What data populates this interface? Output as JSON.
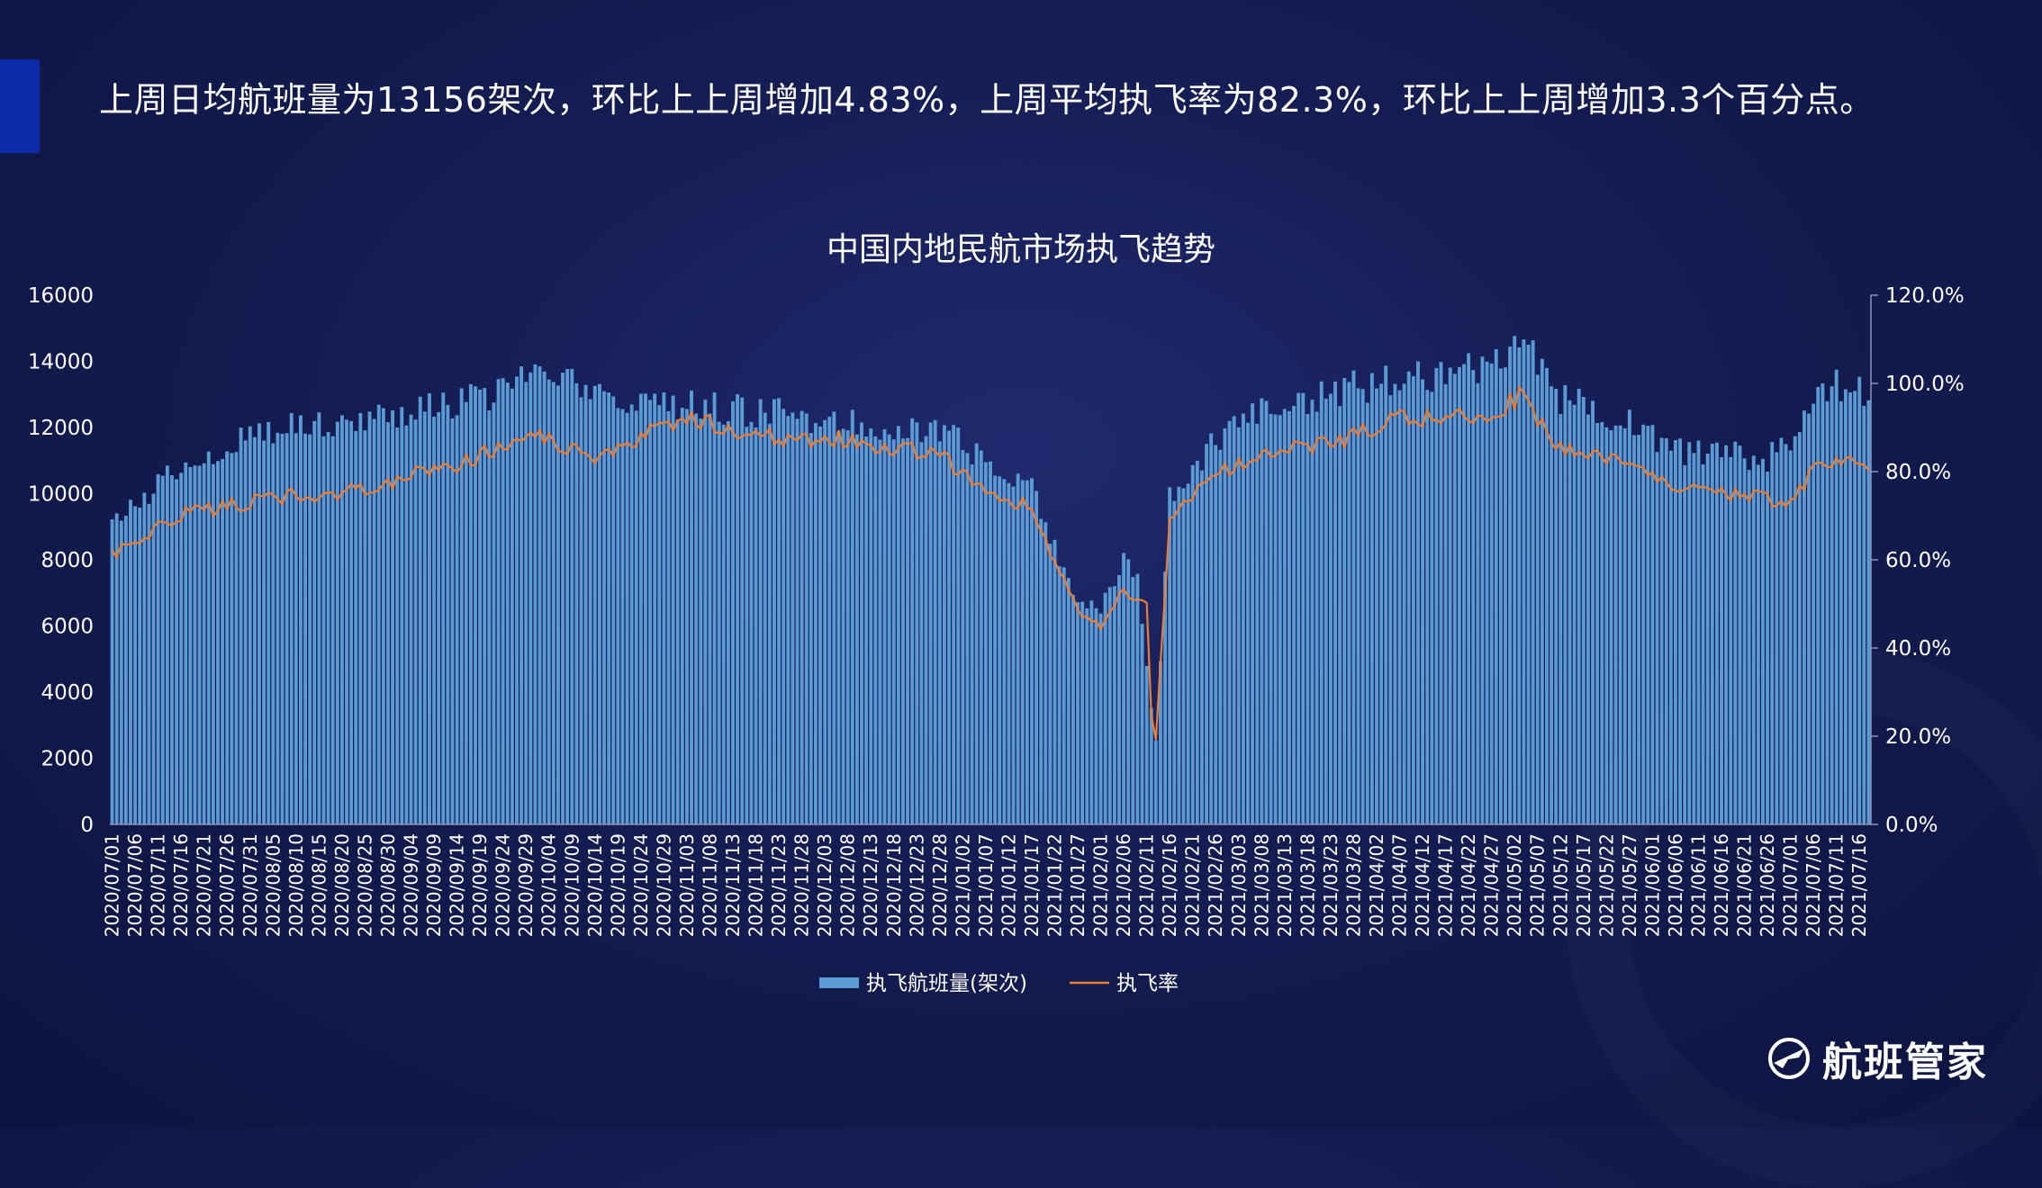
{
  "headline": "上周日均航班量为13156架次，环比上上周增加4.83%，上周平均执飞率为82.3%，环比上上周增加3.3个百分点。",
  "logo_text": "航班管家",
  "logo_icon": "plane-globe-icon",
  "colors": {
    "bar": "#5b9bd5",
    "line": "#ed7d31",
    "background": "#141c52",
    "accent": "#0a2aa8"
  },
  "chart_data": {
    "type": "bar",
    "title": "中国内地民航市场执飞趋势",
    "x_start": "2020/07/01",
    "x_end": "2021/07/18",
    "x_tick_labels": [
      "2020/07/01",
      "2020/07/06",
      "2020/07/11",
      "2020/07/16",
      "2020/07/21",
      "2020/07/26",
      "2020/07/31",
      "2020/08/05",
      "2020/08/10",
      "2020/08/15",
      "2020/08/20",
      "2020/08/25",
      "2020/08/30",
      "2020/09/04",
      "2020/09/09",
      "2020/09/14",
      "2020/09/19",
      "2020/09/24",
      "2020/09/29",
      "2020/10/04",
      "2020/10/09",
      "2020/10/14",
      "2020/10/19",
      "2020/10/24",
      "2020/10/29",
      "2020/11/03",
      "2020/11/08",
      "2020/11/13",
      "2020/11/18",
      "2020/11/23",
      "2020/11/28",
      "2020/12/03",
      "2020/12/08",
      "2020/12/13",
      "2020/12/18",
      "2020/12/23",
      "2020/12/28",
      "2021/01/02",
      "2021/01/07",
      "2021/01/12",
      "2021/01/17",
      "2021/01/22",
      "2021/01/27",
      "2021/02/01",
      "2021/02/06",
      "2021/02/11",
      "2021/02/16",
      "2021/02/21",
      "2021/02/26",
      "2021/03/03",
      "2021/03/08",
      "2021/03/13",
      "2021/03/18",
      "2021/03/23",
      "2021/03/28",
      "2021/04/02",
      "2021/04/07",
      "2021/04/12",
      "2021/04/17",
      "2021/04/22",
      "2021/04/27",
      "2021/05/02",
      "2021/05/07",
      "2021/05/12",
      "2021/05/17",
      "2021/05/22",
      "2021/05/27",
      "2021/06/01",
      "2021/06/06",
      "2021/06/11",
      "2021/06/16",
      "2021/06/21",
      "2021/06/26",
      "2021/07/01",
      "2021/07/06",
      "2021/07/11",
      "2021/07/16"
    ],
    "y_left": {
      "min": 0,
      "max": 16000,
      "ticks": [
        "0",
        "2000",
        "4000",
        "6000",
        "8000",
        "10000",
        "12000",
        "14000",
        "16000"
      ]
    },
    "y_right": {
      "min": 0,
      "max": 1.2,
      "ticks": [
        "0.0%",
        "20.0%",
        "40.0%",
        "60.0%",
        "80.0%",
        "100.0%",
        "120.0%"
      ]
    },
    "legend": {
      "position": "bottom",
      "bar_label": "执飞航班量(架次)",
      "line_label": "执飞率"
    },
    "series": [
      {
        "name": "执飞航班量(架次)",
        "axis": "left",
        "type": "bar",
        "keypoints": [
          [
            "2020/07/01",
            9000
          ],
          [
            "2020/07/15",
            10800
          ],
          [
            "2020/08/05",
            12000
          ],
          [
            "2020/08/25",
            12300
          ],
          [
            "2020/09/15",
            12700
          ],
          [
            "2020/10/01",
            13500
          ],
          [
            "2020/10/05",
            13600
          ],
          [
            "2020/10/14",
            12900
          ],
          [
            "2020/11/08",
            12600
          ],
          [
            "2020/12/08",
            12200
          ],
          [
            "2020/12/28",
            11900
          ],
          [
            "2021/01/07",
            11000
          ],
          [
            "2021/01/17",
            10200
          ],
          [
            "2021/01/27",
            6500
          ],
          [
            "2021/02/01",
            6600
          ],
          [
            "2021/02/06",
            8000
          ],
          [
            "2021/02/09",
            7600
          ],
          [
            "2021/02/12",
            3400
          ],
          [
            "2021/02/13",
            2600
          ],
          [
            "2021/02/16",
            10000
          ],
          [
            "2021/02/26",
            11600
          ],
          [
            "2021/03/08",
            12400
          ],
          [
            "2021/03/28",
            13200
          ],
          [
            "2021/04/17",
            13600
          ],
          [
            "2021/04/30",
            14000
          ],
          [
            "2021/05/03",
            14900
          ],
          [
            "2021/05/12",
            12900
          ],
          [
            "2021/05/27",
            12200
          ],
          [
            "2021/06/06",
            11300
          ],
          [
            "2021/06/26",
            11100
          ],
          [
            "2021/07/01",
            11700
          ],
          [
            "2021/07/06",
            12700
          ],
          [
            "2021/07/11",
            13300
          ],
          [
            "2021/07/18",
            13100
          ]
        ]
      },
      {
        "name": "执飞率",
        "axis": "right",
        "type": "line",
        "keypoints": [
          [
            "2020/07/01",
            0.61
          ],
          [
            "2020/07/15",
            0.7
          ],
          [
            "2020/08/05",
            0.74
          ],
          [
            "2020/08/25",
            0.76
          ],
          [
            "2020/09/15",
            0.82
          ],
          [
            "2020/10/01",
            0.88
          ],
          [
            "2020/10/14",
            0.84
          ],
          [
            "2020/11/03",
            0.92
          ],
          [
            "2020/11/18",
            0.88
          ],
          [
            "2020/12/08",
            0.87
          ],
          [
            "2020/12/28",
            0.84
          ],
          [
            "2021/01/07",
            0.75
          ],
          [
            "2021/01/17",
            0.72
          ],
          [
            "2021/01/27",
            0.48
          ],
          [
            "2021/02/01",
            0.45
          ],
          [
            "2021/02/06",
            0.53
          ],
          [
            "2021/02/11",
            0.5
          ],
          [
            "2021/02/12",
            0.25
          ],
          [
            "2021/02/13",
            0.19
          ],
          [
            "2021/02/16",
            0.7
          ],
          [
            "2021/02/26",
            0.8
          ],
          [
            "2021/03/13",
            0.85
          ],
          [
            "2021/03/28",
            0.88
          ],
          [
            "2021/04/07",
            0.92
          ],
          [
            "2021/04/27",
            0.93
          ],
          [
            "2021/05/03",
            0.97
          ],
          [
            "2021/05/12",
            0.86
          ],
          [
            "2021/05/27",
            0.82
          ],
          [
            "2021/06/06",
            0.76
          ],
          [
            "2021/06/26",
            0.74
          ],
          [
            "2021/07/01",
            0.72
          ],
          [
            "2021/07/06",
            0.8
          ],
          [
            "2021/07/11",
            0.82
          ],
          [
            "2021/07/18",
            0.82
          ]
        ]
      }
    ]
  }
}
